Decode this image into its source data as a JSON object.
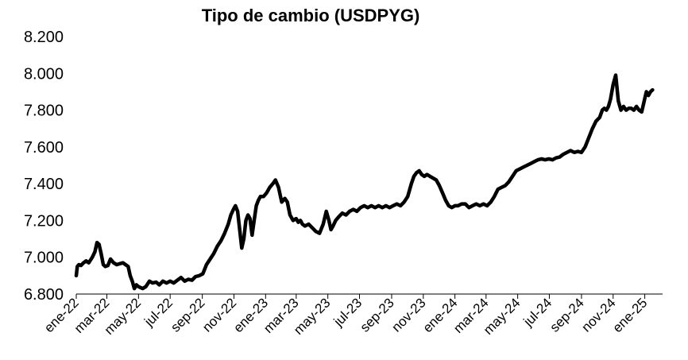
{
  "chart_data": {
    "type": "line",
    "title": "Tipo de cambio (USDPYG)",
    "xlabel": "",
    "ylabel": "",
    "ylim": [
      6800,
      8200
    ],
    "yticks": [
      6800,
      7000,
      7200,
      7400,
      7600,
      7800,
      8000,
      8200
    ],
    "ytick_labels": [
      "6.800",
      "7.000",
      "7.200",
      "7.400",
      "7.600",
      "7.800",
      "8.000",
      "8.200"
    ],
    "xlim": [
      "2022-01-01",
      "2025-01-20"
    ],
    "xticks": [
      "2022-01-01",
      "2022-03-01",
      "2022-05-01",
      "2022-07-01",
      "2022-09-01",
      "2022-11-01",
      "2023-01-01",
      "2023-03-01",
      "2023-05-01",
      "2023-07-01",
      "2023-09-01",
      "2023-11-01",
      "2024-01-01",
      "2024-03-01",
      "2024-05-01",
      "2024-07-01",
      "2024-09-01",
      "2024-11-01",
      "2025-01-01"
    ],
    "xtick_labels": [
      "ene-22",
      "mar-22",
      "may-22",
      "jul-22",
      "sep-22",
      "nov-22",
      "ene-23",
      "mar-23",
      "may-23",
      "jul-23",
      "sep-23",
      "nov-23",
      "ene-24",
      "mar-24",
      "may-24",
      "jul-24",
      "sep-24",
      "nov-24",
      "ene-25"
    ],
    "grid": false,
    "legend": "none",
    "line_color": "#000000",
    "series": [
      {
        "x": [
          "2022-01-01",
          "2022-01-03",
          "2022-01-06",
          "2022-01-10",
          "2022-01-15",
          "2022-01-20",
          "2022-01-25",
          "2022-02-01",
          "2022-02-06",
          "2022-02-10",
          "2022-02-14",
          "2022-02-18",
          "2022-02-22",
          "2022-02-26",
          "2022-03-03",
          "2022-03-08",
          "2022-03-14",
          "2022-03-20",
          "2022-03-26",
          "2022-04-01",
          "2022-04-06",
          "2022-04-11",
          "2022-04-15",
          "2022-04-19",
          "2022-04-23",
          "2022-04-27",
          "2022-05-01",
          "2022-05-05",
          "2022-05-09",
          "2022-05-15",
          "2022-05-22",
          "2022-05-28",
          "2022-06-04",
          "2022-06-10",
          "2022-06-17",
          "2022-06-24",
          "2022-07-01",
          "2022-07-08",
          "2022-07-15",
          "2022-07-22",
          "2022-07-29",
          "2022-08-05",
          "2022-08-12",
          "2022-08-19",
          "2022-08-26",
          "2022-09-02",
          "2022-09-09",
          "2022-09-16",
          "2022-09-23",
          "2022-09-30",
          "2022-10-07",
          "2022-10-14",
          "2022-10-21",
          "2022-10-26",
          "2022-10-31",
          "2022-11-04",
          "2022-11-08",
          "2022-11-12",
          "2022-11-16",
          "2022-11-20",
          "2022-11-24",
          "2022-11-28",
          "2022-12-02",
          "2022-12-06",
          "2022-12-10",
          "2022-12-14",
          "2022-12-18",
          "2022-12-22",
          "2022-12-28",
          "2023-01-03",
          "2023-01-09",
          "2023-01-15",
          "2023-01-20",
          "2023-01-26",
          "2023-02-01",
          "2023-02-07",
          "2023-02-12",
          "2023-02-17",
          "2023-02-23",
          "2023-03-01",
          "2023-03-05",
          "2023-03-09",
          "2023-03-13",
          "2023-03-18",
          "2023-03-25",
          "2023-04-01",
          "2023-04-08",
          "2023-04-15",
          "2023-04-22",
          "2023-04-28",
          "2023-05-03",
          "2023-05-07",
          "2023-05-11",
          "2023-05-16",
          "2023-05-22",
          "2023-05-29",
          "2023-06-05",
          "2023-06-12",
          "2023-06-19",
          "2023-06-26",
          "2023-07-03",
          "2023-07-10",
          "2023-07-17",
          "2023-07-24",
          "2023-07-31",
          "2023-08-07",
          "2023-08-14",
          "2023-08-21",
          "2023-08-28",
          "2023-09-04",
          "2023-09-11",
          "2023-09-18",
          "2023-09-25",
          "2023-10-02",
          "2023-10-09",
          "2023-10-14",
          "2023-10-19",
          "2023-10-24",
          "2023-10-29",
          "2023-11-03",
          "2023-11-08",
          "2023-11-14",
          "2023-11-20",
          "2023-11-26",
          "2023-12-02",
          "2023-12-08",
          "2023-12-14",
          "2023-12-20",
          "2023-12-26",
          "2024-01-01",
          "2024-01-07",
          "2024-01-14",
          "2024-01-21",
          "2024-01-28",
          "2024-02-04",
          "2024-02-11",
          "2024-02-18",
          "2024-02-25",
          "2024-03-03",
          "2024-03-10",
          "2024-03-17",
          "2024-03-24",
          "2024-03-31",
          "2024-04-07",
          "2024-04-14",
          "2024-04-21",
          "2024-04-28",
          "2024-05-05",
          "2024-05-12",
          "2024-05-19",
          "2024-05-26",
          "2024-06-02",
          "2024-06-09",
          "2024-06-16",
          "2024-06-23",
          "2024-06-30",
          "2024-07-07",
          "2024-07-14",
          "2024-07-21",
          "2024-07-28",
          "2024-08-04",
          "2024-08-11",
          "2024-08-18",
          "2024-08-25",
          "2024-09-01",
          "2024-09-08",
          "2024-09-15",
          "2024-09-22",
          "2024-09-29",
          "2024-10-06",
          "2024-10-11",
          "2024-10-15",
          "2024-10-19",
          "2024-10-23",
          "2024-10-27",
          "2024-11-01",
          "2024-11-06",
          "2024-11-11",
          "2024-11-16",
          "2024-11-21",
          "2024-11-26",
          "2024-12-01",
          "2024-12-06",
          "2024-12-11",
          "2024-12-16",
          "2024-12-21",
          "2024-12-26",
          "2024-12-31",
          "2025-01-04",
          "2025-01-08",
          "2025-01-12",
          "2025-01-16"
        ],
        "y": [
          6900,
          6950,
          6960,
          6955,
          6970,
          6980,
          6970,
          7000,
          7030,
          7080,
          7070,
          7020,
          6960,
          6950,
          6955,
          6990,
          6970,
          6960,
          6965,
          6970,
          6960,
          6950,
          6900,
          6870,
          6830,
          6850,
          6840,
          6835,
          6830,
          6840,
          6870,
          6860,
          6865,
          6850,
          6870,
          6860,
          6870,
          6860,
          6875,
          6890,
          6870,
          6880,
          6875,
          6895,
          6900,
          6910,
          6960,
          6990,
          7020,
          7060,
          7090,
          7130,
          7180,
          7230,
          7260,
          7280,
          7250,
          7150,
          7050,
          7100,
          7200,
          7230,
          7210,
          7120,
          7200,
          7280,
          7310,
          7330,
          7330,
          7350,
          7380,
          7400,
          7420,
          7380,
          7300,
          7320,
          7300,
          7230,
          7200,
          7210,
          7190,
          7200,
          7180,
          7170,
          7180,
          7160,
          7140,
          7130,
          7180,
          7250,
          7200,
          7150,
          7170,
          7200,
          7220,
          7240,
          7230,
          7250,
          7260,
          7250,
          7270,
          7280,
          7270,
          7280,
          7270,
          7280,
          7270,
          7280,
          7270,
          7280,
          7290,
          7280,
          7300,
          7330,
          7400,
          7440,
          7460,
          7470,
          7450,
          7440,
          7450,
          7440,
          7430,
          7420,
          7390,
          7350,
          7310,
          7280,
          7270,
          7280,
          7280,
          7290,
          7290,
          7270,
          7280,
          7290,
          7280,
          7290,
          7280,
          7300,
          7330,
          7370,
          7380,
          7390,
          7410,
          7440,
          7470,
          7480,
          7490,
          7500,
          7510,
          7520,
          7530,
          7535,
          7530,
          7535,
          7530,
          7540,
          7545,
          7560,
          7570,
          7580,
          7570,
          7575,
          7570,
          7600,
          7650,
          7700,
          7740,
          7760,
          7800,
          7810,
          7800,
          7820,
          7860,
          7940,
          7990,
          7850,
          7800,
          7820,
          7800,
          7810,
          7810,
          7800,
          7820,
          7800,
          7790,
          7850,
          7900,
          7880,
          7900,
          7910
        ]
      }
    ]
  }
}
